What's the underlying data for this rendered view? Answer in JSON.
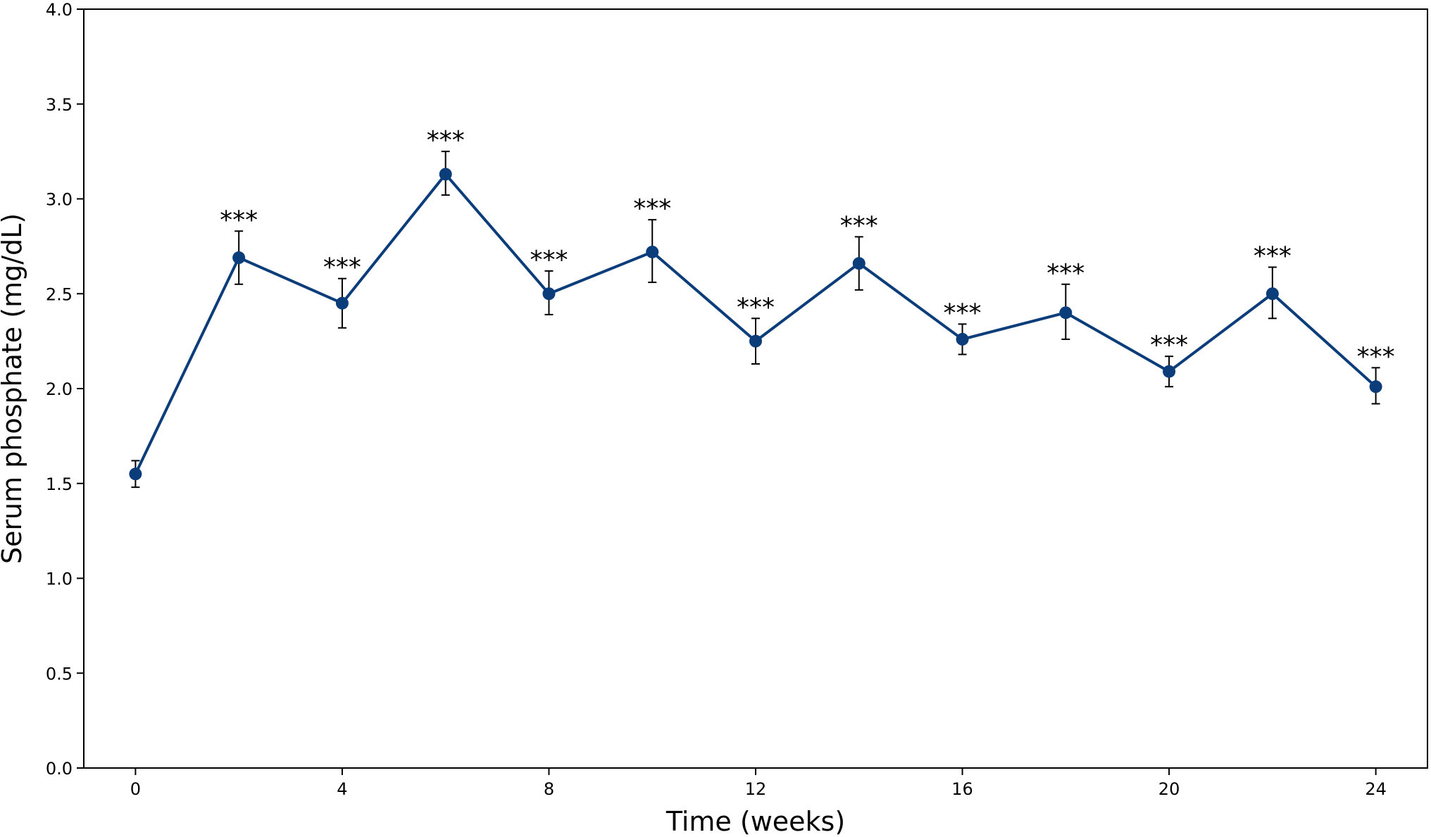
{
  "chart_data": {
    "type": "line",
    "title": "",
    "xlabel": "Time (weeks)",
    "ylabel": "Serum phosphate (mg/dL)",
    "xlim": [
      -1.0,
      25.0
    ],
    "ylim": [
      0.0,
      4.0
    ],
    "x_ticks": [
      0,
      4,
      8,
      12,
      16,
      20,
      24
    ],
    "y_ticks": [
      "0.0",
      "0.5",
      "1.0",
      "1.5",
      "2.0",
      "2.5",
      "3.0",
      "3.5",
      "4.0"
    ],
    "grid": false,
    "legend": "none",
    "colors": {
      "line": "#0b3d7a",
      "marker": "#0b3d7a",
      "error_bar": "#000000",
      "axes": "#000000"
    },
    "series": [
      {
        "x": [
          0,
          2,
          4,
          6,
          8,
          10,
          12,
          14,
          16,
          18,
          20,
          22,
          24
        ],
        "y": [
          1.55,
          2.69,
          2.45,
          3.13,
          2.5,
          2.72,
          2.25,
          2.66,
          2.26,
          2.4,
          2.09,
          2.5,
          2.01
        ],
        "error_low": [
          1.48,
          2.55,
          2.32,
          3.02,
          2.39,
          2.56,
          2.13,
          2.52,
          2.18,
          2.26,
          2.01,
          2.37,
          1.92
        ],
        "error_high": [
          1.62,
          2.83,
          2.58,
          3.25,
          2.62,
          2.89,
          2.37,
          2.8,
          2.34,
          2.55,
          2.17,
          2.64,
          2.11
        ],
        "annotations": [
          "",
          "***",
          "***",
          "***",
          "***",
          "***",
          "***",
          "***",
          "***",
          "***",
          "***",
          "***",
          "***"
        ]
      }
    ]
  }
}
